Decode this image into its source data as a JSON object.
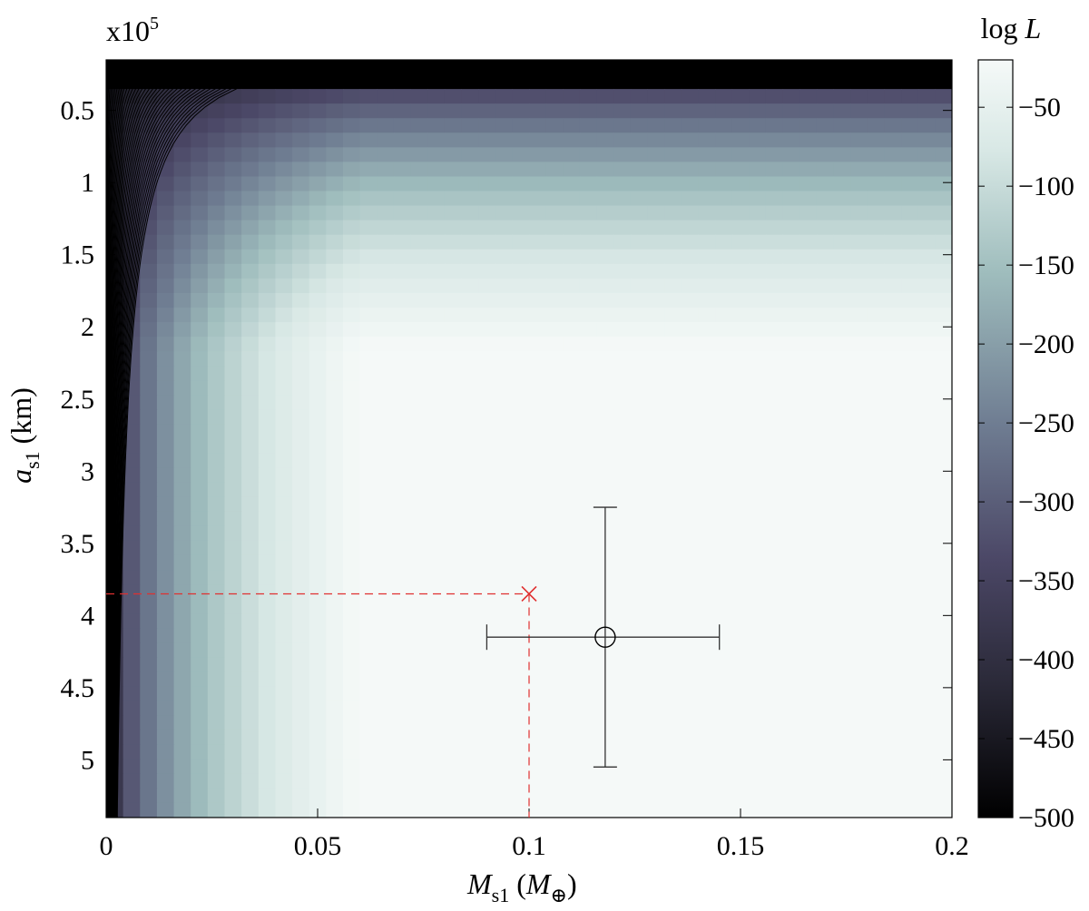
{
  "chart_data": {
    "type": "heatmap",
    "title": "",
    "xlabel": {
      "symbol": "M",
      "subscript": "s1",
      "unit_symbol": "M",
      "unit_subscript": "⊕"
    },
    "ylabel": {
      "symbol": "a",
      "subscript": "s1",
      "unit": "(km)"
    },
    "y_multiplier": {
      "base": "x10",
      "exponent": "5"
    },
    "xlim": [
      0,
      0.2
    ],
    "ylim": [
      0.15,
      5.4
    ],
    "y_reversed": true,
    "x_ticks": [
      0,
      0.05,
      0.1,
      0.15,
      0.2
    ],
    "x_tick_labels": [
      "0",
      "0.05",
      "0.1",
      "0.15",
      "0.2"
    ],
    "y_ticks": [
      0.5,
      1,
      1.5,
      2,
      2.5,
      3,
      3.5,
      4,
      4.5,
      5
    ],
    "y_tick_labels": [
      "0.5",
      "1",
      "1.5",
      "2",
      "2.5",
      "3",
      "3.5",
      "4",
      "4.5",
      "5"
    ],
    "colorbar": {
      "label": {
        "text": "log ",
        "italic": "L"
      },
      "range": [
        -500,
        -20
      ],
      "ticks": [
        -50,
        -100,
        -150,
        -200,
        -250,
        -300,
        -350,
        -400,
        -450,
        -500
      ],
      "tick_labels": [
        "−50",
        "−100",
        "−150",
        "−200",
        "−250",
        "−300",
        "−350",
        "−400",
        "−450",
        "−500"
      ],
      "colormap": [
        "#000000",
        "#2b2a39",
        "#4b4766",
        "#6f7d92",
        "#9fbdbd",
        "#d8e8e5",
        "#f5f9f8"
      ]
    },
    "best_fit": {
      "x": 0.1,
      "y": 3.85,
      "color": "#e03030",
      "marker": "x",
      "guide_lines": "dashed"
    },
    "reference_point": {
      "x": 0.118,
      "y": 4.15,
      "x_err": [
        0.09,
        0.145
      ],
      "y_err": [
        3.25,
        5.05
      ],
      "marker": "circle"
    },
    "contour_count": 38,
    "grid": false
  }
}
